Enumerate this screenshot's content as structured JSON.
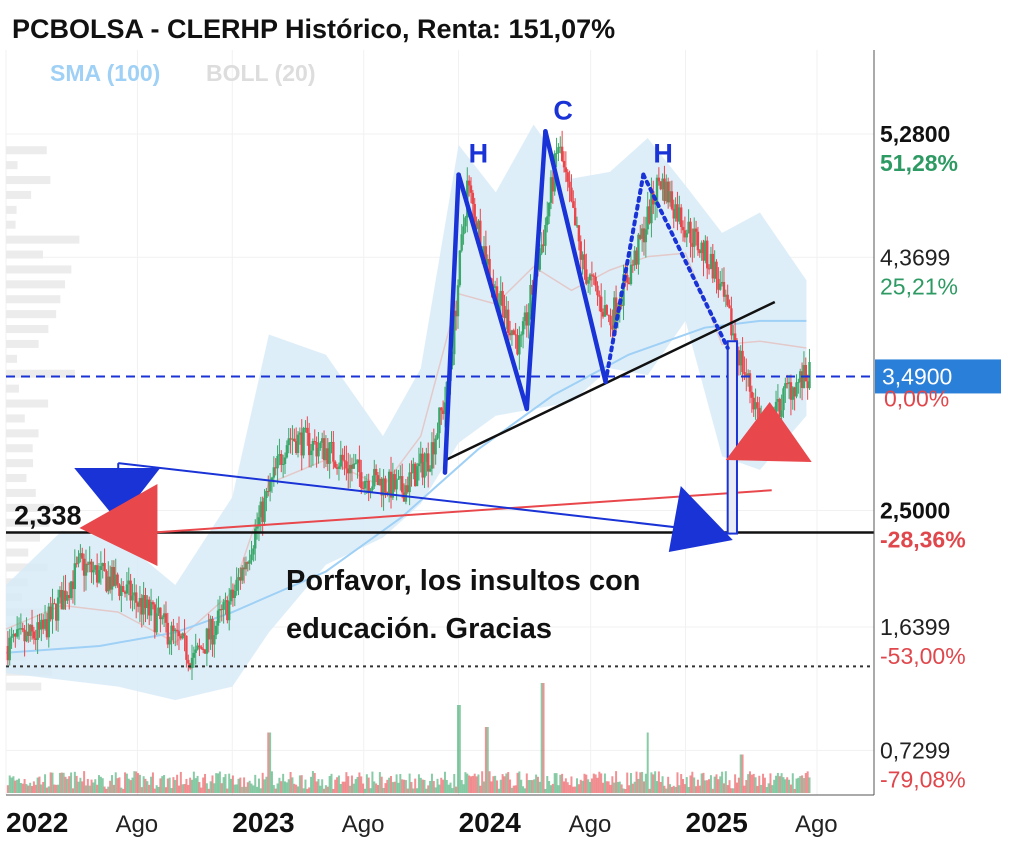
{
  "title": "PCBOLSA - CLERHP Histórico, Renta: 151,07%",
  "indicators": {
    "sma": "SMA (100)",
    "boll": "BOLL (20)"
  },
  "colors": {
    "up": "#3aa86b",
    "down": "#e8474c",
    "pattern_blue": "#1a33d6",
    "band_fill": "#d8ebf8",
    "sma_line": "#9fd0f5",
    "boll_mid": "#e3c9c9",
    "current_tag": "#2a7fd9"
  },
  "y_axis": {
    "scale": "linear",
    "range": [
      0.4,
      5.9
    ],
    "ticks": [
      {
        "value": 5.28,
        "label": "5,2800",
        "pct": "51,28%",
        "bold": true,
        "sign": "pos"
      },
      {
        "value": 4.3699,
        "label": "4,3699",
        "pct": "25,21%",
        "bold": false,
        "sign": "pos"
      },
      {
        "value": 2.5,
        "label": "2,5000",
        "pct": "-28,36%",
        "bold": true,
        "sign": "neg"
      },
      {
        "value": 1.6399,
        "label": "1,6399",
        "pct": "-53,00%",
        "bold": false,
        "sign": "neg"
      },
      {
        "value": 0.7299,
        "label": "0,7299",
        "pct": "-79,08%",
        "bold": false,
        "sign": "neg"
      }
    ],
    "current_price": {
      "value": 3.49,
      "label": "3,4900",
      "pct": "0,00%"
    }
  },
  "x_axis": {
    "range": [
      "2022-01-01",
      "2025-11-01"
    ],
    "ticks": [
      {
        "date": "2022-01-01",
        "label": "2022",
        "year": true
      },
      {
        "date": "2022-08-01",
        "label": "Ago",
        "year": false
      },
      {
        "date": "2023-01-01",
        "label": "2023",
        "year": true
      },
      {
        "date": "2023-08-01",
        "label": "Ago",
        "year": false
      },
      {
        "date": "2024-01-01",
        "label": "2024",
        "year": true
      },
      {
        "date": "2024-08-01",
        "label": "Ago",
        "year": false
      },
      {
        "date": "2025-01-01",
        "label": "2025",
        "year": true
      },
      {
        "date": "2025-08-01",
        "label": "Ago",
        "year": false
      }
    ]
  },
  "annotations": {
    "note_line1": "Porfavor, los insultos con",
    "note_line2": "educación.  Gracias",
    "level_label": "2,338",
    "level_value": 2.338,
    "pattern_labels": [
      "H",
      "C",
      "H"
    ]
  },
  "chart_data": {
    "type": "candlestick",
    "title": "PCBOLSA - CLERHP Histórico, Renta: 151,07%",
    "xlabel": "",
    "ylabel": "",
    "ylim": [
      0.4,
      5.9
    ],
    "series": [
      {
        "name": "SMA (100)",
        "type": "line",
        "points": [
          [
            "2022-01-01",
            1.45
          ],
          [
            "2022-06-01",
            1.5
          ],
          [
            "2022-10-01",
            1.6
          ],
          [
            "2023-01-01",
            1.75
          ],
          [
            "2023-06-01",
            2.05
          ],
          [
            "2023-10-01",
            2.45
          ],
          [
            "2024-02-01",
            2.95
          ],
          [
            "2024-06-01",
            3.35
          ],
          [
            "2024-10-01",
            3.65
          ],
          [
            "2025-02-01",
            3.85
          ],
          [
            "2025-05-01",
            3.9
          ],
          [
            "2025-07-15",
            3.9
          ]
        ]
      },
      {
        "name": "BOLL (20)",
        "type": "band",
        "points": [
          [
            "2022-01-01",
            1.3,
            1.95
          ],
          [
            "2022-04-01",
            1.25,
            2.35
          ],
          [
            "2022-07-01",
            1.2,
            2.3
          ],
          [
            "2022-10-01",
            1.1,
            1.95
          ],
          [
            "2023-01-01",
            1.2,
            2.6
          ],
          [
            "2023-03-01",
            1.6,
            3.8
          ],
          [
            "2023-06-01",
            2.1,
            3.65
          ],
          [
            "2023-09-01",
            2.3,
            3.05
          ],
          [
            "2023-11-01",
            2.55,
            3.55
          ],
          [
            "2024-01-01",
            3.0,
            5.2
          ],
          [
            "2024-03-01",
            3.2,
            4.85
          ],
          [
            "2024-05-01",
            3.25,
            5.35
          ],
          [
            "2024-07-01",
            3.3,
            4.95
          ],
          [
            "2024-09-01",
            3.55,
            5.0
          ],
          [
            "2024-11-01",
            3.5,
            5.25
          ],
          [
            "2025-01-01",
            3.9,
            4.9
          ],
          [
            "2025-03-01",
            2.9,
            4.55
          ],
          [
            "2025-05-01",
            2.8,
            4.7
          ],
          [
            "2025-07-15",
            3.2,
            4.2
          ]
        ]
      }
    ],
    "price_path": [
      [
        "2022-01-01",
        1.5
      ],
      [
        "2022-03-01",
        1.6
      ],
      [
        "2022-05-01",
        2.1
      ],
      [
        "2022-07-01",
        1.95
      ],
      [
        "2022-09-01",
        1.7
      ],
      [
        "2022-11-01",
        1.4
      ],
      [
        "2023-01-01",
        1.85
      ],
      [
        "2023-02-15",
        2.45
      ],
      [
        "2023-04-01",
        3.05
      ],
      [
        "2023-06-01",
        2.95
      ],
      [
        "2023-08-01",
        2.75
      ],
      [
        "2023-10-01",
        2.65
      ],
      [
        "2023-11-15",
        2.9
      ],
      [
        "2023-12-15",
        3.4
      ],
      [
        "2024-01-15",
        4.9
      ],
      [
        "2024-03-01",
        4.1
      ],
      [
        "2024-04-10",
        3.7
      ],
      [
        "2024-05-20",
        4.6
      ],
      [
        "2024-06-10",
        5.2
      ],
      [
        "2024-07-20",
        4.3
      ],
      [
        "2024-09-01",
        3.9
      ],
      [
        "2024-10-15",
        4.4
      ],
      [
        "2024-11-20",
        4.95
      ],
      [
        "2025-01-01",
        4.6
      ],
      [
        "2025-02-15",
        4.3
      ],
      [
        "2025-04-01",
        3.6
      ],
      [
        "2025-05-10",
        3.05
      ],
      [
        "2025-06-15",
        3.4
      ],
      [
        "2025-07-20",
        3.49
      ]
    ],
    "volume_spikes": [
      [
        "2023-03-01",
        0.55
      ],
      [
        "2024-01-01",
        0.8
      ],
      [
        "2024-02-15",
        0.6
      ],
      [
        "2024-05-15",
        1.0
      ],
      [
        "2024-11-01",
        0.55
      ],
      [
        "2025-04-01",
        0.35
      ]
    ],
    "drawings": {
      "shoulder_head_shoulder": [
        [
          "2023-12-10",
          2.78
        ],
        [
          "2024-01-01",
          4.98
        ],
        [
          "2024-04-20",
          3.25
        ],
        [
          "2024-05-20",
          5.3
        ],
        [
          "2024-08-25",
          3.45
        ],
        [
          "2024-10-25",
          4.98
        ],
        [
          "2025-03-10",
          3.7
        ]
      ],
      "neckline": [
        [
          "2023-12-10",
          2.87
        ],
        [
          "2025-05-25",
          4.04
        ]
      ],
      "blue_triangle_line": [
        [
          "2022-07-01",
          2.85
        ],
        [
          "2025-03-15",
          2.33
        ]
      ],
      "red_triangle_line": [
        [
          "2022-08-01",
          2.33
        ],
        [
          "2025-05-20",
          2.65
        ]
      ],
      "support_2_338": [
        [
          "2022-01-01",
          2.338
        ],
        [
          "2025-11-01",
          2.338
        ]
      ],
      "dotted_support": [
        [
          "2022-01-01",
          1.35
        ],
        [
          "2025-11-01",
          1.35
        ]
      ],
      "current_level": [
        [
          "2022-01-01",
          3.49
        ],
        [
          "2025-11-01",
          3.49
        ]
      ],
      "drop_box": [
        [
          "2025-03-10",
          3.75
        ],
        [
          "2025-03-25",
          2.33
        ]
      ]
    }
  }
}
